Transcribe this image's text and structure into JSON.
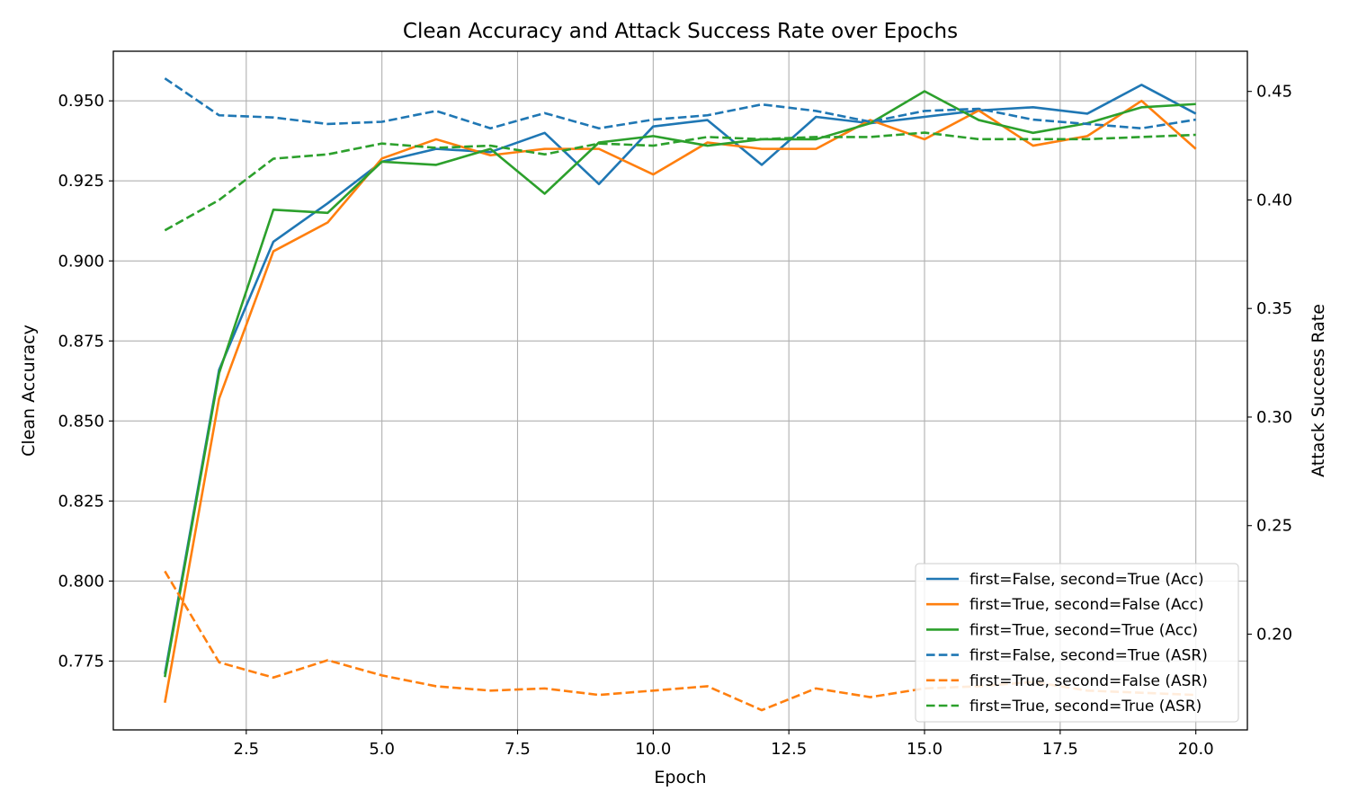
{
  "chart_data": {
    "type": "line",
    "title": "Clean Accuracy and Attack Success Rate over Epochs",
    "xlabel": "Epoch",
    "ylabel_left": "Clean Accuracy",
    "ylabel_right": "Attack Success Rate",
    "xlim": [
      0.05,
      20.95
    ],
    "ylim_left": [
      0.7535,
      0.9655
    ],
    "ylim_right": [
      0.1559,
      0.4685
    ],
    "xticks": [
      2.5,
      5.0,
      7.5,
      10.0,
      12.5,
      15.0,
      17.5,
      20.0
    ],
    "xtick_labels": [
      "2.5",
      "5.0",
      "7.5",
      "10.0",
      "12.5",
      "15.0",
      "17.5",
      "20.0"
    ],
    "yticks_left": [
      0.775,
      0.8,
      0.825,
      0.85,
      0.875,
      0.9,
      0.925,
      0.95
    ],
    "ytick_labels_left": [
      "0.775",
      "0.800",
      "0.825",
      "0.850",
      "0.875",
      "0.900",
      "0.925",
      "0.950"
    ],
    "yticks_right": [
      0.2,
      0.25,
      0.3,
      0.35,
      0.4,
      0.45
    ],
    "ytick_labels_right": [
      "0.20",
      "0.25",
      "0.30",
      "0.35",
      "0.40",
      "0.45"
    ],
    "grid": true,
    "legend_position": "lower-right",
    "x": [
      1,
      2,
      3,
      4,
      5,
      6,
      7,
      8,
      9,
      10,
      11,
      12,
      13,
      14,
      15,
      16,
      17,
      18,
      19,
      20
    ],
    "series": [
      {
        "name": "first=False, second=True (Acc)",
        "axis": "left",
        "style": "solid",
        "color": "#1f77b4",
        "values": [
          0.771,
          0.866,
          0.906,
          0.918,
          0.931,
          0.935,
          0.934,
          0.94,
          0.924,
          0.942,
          0.944,
          0.93,
          0.945,
          0.943,
          0.945,
          0.947,
          0.948,
          0.946,
          0.955,
          0.946
        ]
      },
      {
        "name": "first=True, second=False (Acc)",
        "axis": "left",
        "style": "solid",
        "color": "#ff7f0e",
        "values": [
          0.762,
          0.857,
          0.903,
          0.912,
          0.932,
          0.938,
          0.933,
          0.935,
          0.935,
          0.927,
          0.937,
          0.935,
          0.935,
          0.944,
          0.938,
          0.947,
          0.936,
          0.939,
          0.95,
          0.935
        ]
      },
      {
        "name": "first=True, second=True (Acc)",
        "axis": "left",
        "style": "solid",
        "color": "#2ca02c",
        "values": [
          0.77,
          0.865,
          0.916,
          0.915,
          0.931,
          0.93,
          0.935,
          0.921,
          0.937,
          0.939,
          0.936,
          0.938,
          0.938,
          0.943,
          0.953,
          0.944,
          0.94,
          0.943,
          0.948,
          0.949
        ]
      },
      {
        "name": "first=False, second=True (ASR)",
        "axis": "right",
        "style": "dashed",
        "color": "#1f77b4",
        "values": [
          0.456,
          0.439,
          0.438,
          0.435,
          0.436,
          0.441,
          0.433,
          0.44,
          0.433,
          0.437,
          0.439,
          0.444,
          0.441,
          0.436,
          0.441,
          0.442,
          0.437,
          0.435,
          0.433,
          0.437
        ]
      },
      {
        "name": "first=True, second=False (ASR)",
        "axis": "right",
        "style": "dashed",
        "color": "#ff7f0e",
        "values": [
          0.229,
          0.187,
          0.18,
          0.188,
          0.181,
          0.176,
          0.174,
          0.175,
          0.172,
          0.174,
          0.176,
          0.165,
          0.175,
          0.171,
          0.175,
          0.176,
          0.178,
          0.174,
          0.173,
          0.172
        ]
      },
      {
        "name": "first=True, second=True (ASR)",
        "axis": "right",
        "style": "dashed",
        "color": "#2ca02c",
        "values": [
          0.386,
          0.4,
          0.419,
          0.421,
          0.426,
          0.424,
          0.425,
          0.421,
          0.426,
          0.425,
          0.429,
          0.428,
          0.429,
          0.429,
          0.431,
          0.428,
          0.428,
          0.428,
          0.429,
          0.43
        ]
      }
    ]
  }
}
